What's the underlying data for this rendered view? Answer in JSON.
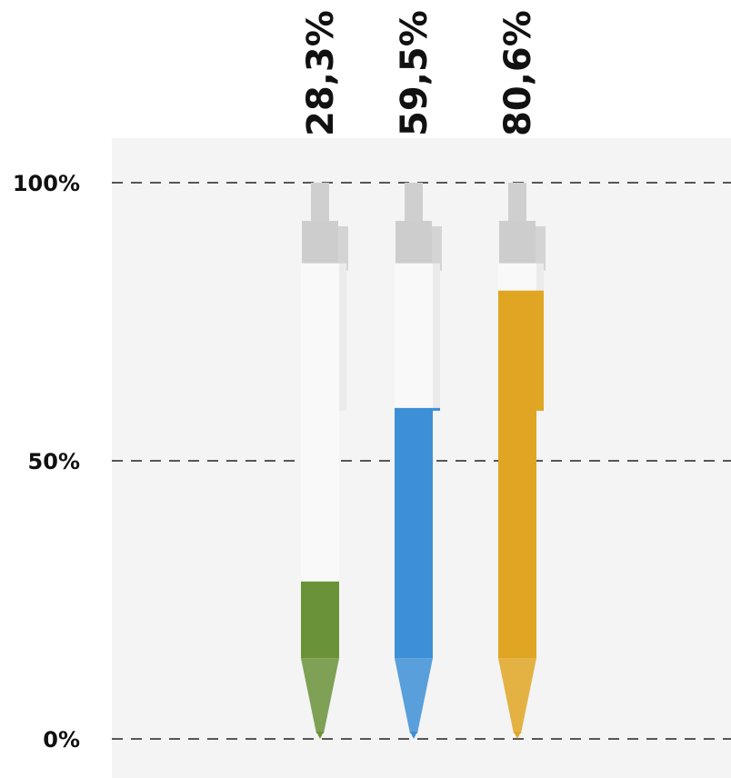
{
  "chart_data": {
    "type": "bar",
    "categories": [
      "",
      "",
      ""
    ],
    "values": [
      28.3,
      59.5,
      80.6
    ],
    "value_labels": [
      "28,3%",
      "59,5%",
      "80,6%"
    ],
    "colors": [
      "#6a9238",
      "#3d8fd6",
      "#e0a623"
    ],
    "ylim": [
      0,
      100
    ],
    "yticks": [
      0,
      50,
      100
    ],
    "ytick_labels": [
      "0%",
      "50%",
      "100%"
    ],
    "grid": "dashed horizontal at ticks",
    "title": "",
    "xlabel": "",
    "ylabel": ""
  }
}
